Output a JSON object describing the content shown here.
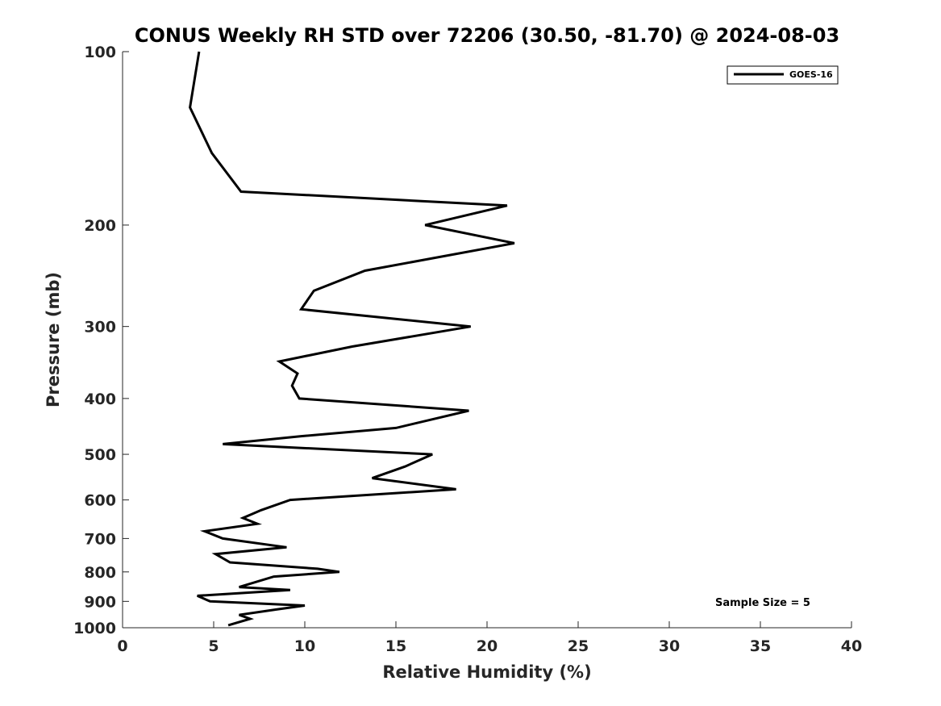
{
  "chart_data": {
    "type": "line",
    "title": "CONUS Weekly RH STD over 72206 (30.50, -81.70) @ 2024-08-03",
    "xlabel": "Relative Humidity (%)",
    "ylabel": "Pressure (mb)",
    "xlim": [
      0,
      40
    ],
    "ylim": [
      100,
      1000
    ],
    "y_scale": "log",
    "y_reversed": true,
    "x_ticks": [
      0,
      5,
      10,
      15,
      20,
      25,
      30,
      35,
      40
    ],
    "y_ticks": [
      100,
      200,
      300,
      400,
      500,
      600,
      700,
      800,
      900,
      1000
    ],
    "grid": false,
    "legend_position": "top-right",
    "series": [
      {
        "name": "GOES-16",
        "color": "#000000",
        "points": [
          [
            4.2,
            100
          ],
          [
            3.7,
            125
          ],
          [
            4.9,
            150
          ],
          [
            6.5,
            175
          ],
          [
            21.1,
            185
          ],
          [
            16.6,
            200
          ],
          [
            21.5,
            215
          ],
          [
            13.3,
            240
          ],
          [
            10.5,
            260
          ],
          [
            9.8,
            280
          ],
          [
            19.1,
            300
          ],
          [
            12.6,
            325
          ],
          [
            8.6,
            345
          ],
          [
            9.6,
            362
          ],
          [
            9.3,
            380
          ],
          [
            9.7,
            400
          ],
          [
            19.0,
            420
          ],
          [
            15.0,
            450
          ],
          [
            9.8,
            465
          ],
          [
            5.5,
            480
          ],
          [
            17.0,
            500
          ],
          [
            15.5,
            525
          ],
          [
            13.7,
            550
          ],
          [
            18.3,
            575
          ],
          [
            9.2,
            600
          ],
          [
            7.6,
            625
          ],
          [
            6.6,
            645
          ],
          [
            7.4,
            660
          ],
          [
            4.5,
            680
          ],
          [
            5.5,
            700
          ],
          [
            9.0,
            725
          ],
          [
            5.1,
            745
          ],
          [
            5.9,
            770
          ],
          [
            10.7,
            790
          ],
          [
            11.9,
            800
          ],
          [
            8.3,
            815
          ],
          [
            6.4,
            850
          ],
          [
            9.2,
            860
          ],
          [
            4.1,
            880
          ],
          [
            4.8,
            900
          ],
          [
            10.0,
            915
          ],
          [
            8.4,
            930
          ],
          [
            6.4,
            950
          ],
          [
            7.0,
            965
          ],
          [
            5.8,
            990
          ]
        ]
      }
    ],
    "annotation": "Sample Size = 5"
  }
}
